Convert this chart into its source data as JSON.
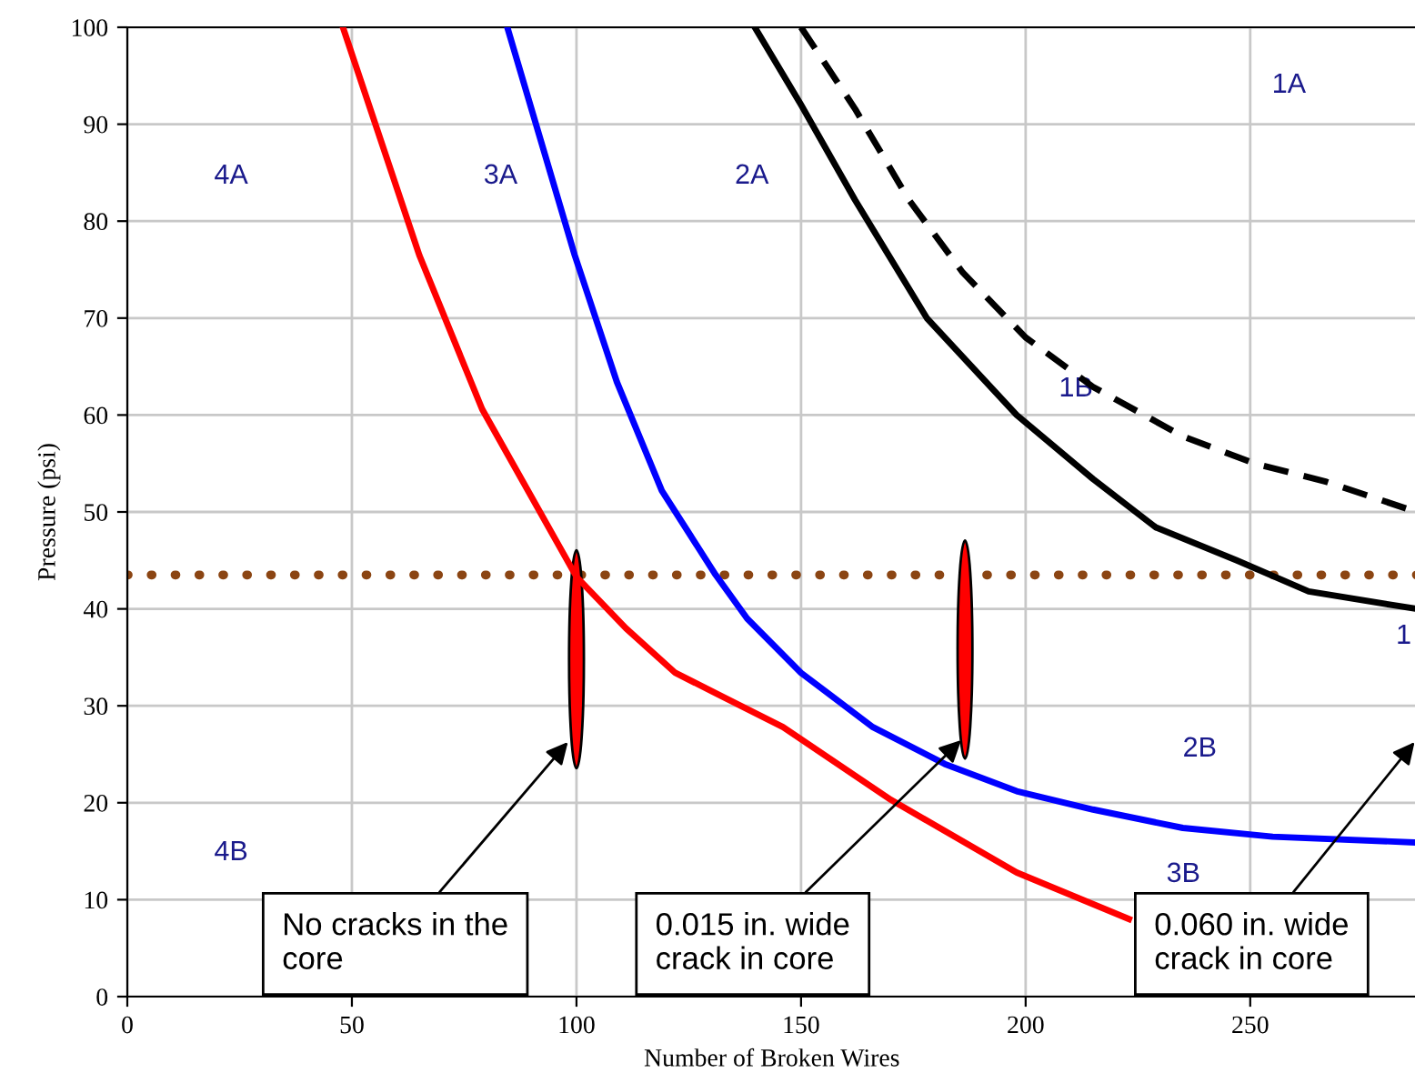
{
  "chart_data": {
    "type": "line",
    "xlabel": "Number of Broken Wires",
    "ylabel": "Pressure (psi)",
    "xlim": [
      0,
      287
    ],
    "ylim": [
      0,
      100
    ],
    "xticks": [
      0,
      50,
      100,
      150,
      200,
      250
    ],
    "yticks": [
      0,
      10,
      20,
      30,
      40,
      50,
      60,
      70,
      80,
      90,
      100
    ],
    "grid": true,
    "marker": "none",
    "series": [
      {
        "color": "#ff0000",
        "line_style": "solid",
        "x": [
          48,
          65,
          79,
          100,
          111,
          122,
          146,
          170,
          198,
          223
        ],
        "values": [
          100,
          76.5,
          60.6,
          43.3,
          38,
          33.4,
          27.8,
          20.3,
          12.8,
          8
        ]
      },
      {
        "color": "#0000ff",
        "line_style": "solid",
        "x": [
          84.6,
          99.6,
          109,
          119,
          131,
          138,
          150,
          166,
          182,
          198,
          215,
          235,
          255,
          287
        ],
        "values": [
          100,
          76.5,
          63.4,
          52.2,
          43.5,
          39,
          33.4,
          27.8,
          24,
          21.2,
          19.3,
          17.4,
          16.5,
          15.9
        ]
      },
      {
        "color": "#000000",
        "line_style": "solid",
        "x": [
          139.7,
          150,
          162,
          178,
          198,
          215,
          229,
          247,
          263,
          287
        ],
        "values": [
          100,
          92,
          82.2,
          70,
          60,
          53.4,
          48.4,
          45,
          41.8,
          40
        ]
      },
      {
        "color": "#000000",
        "line_style": "dashed",
        "x": [
          150,
          162,
          174,
          186,
          200,
          215,
          235,
          251,
          267,
          287
        ],
        "values": [
          100,
          91.6,
          82.2,
          74.7,
          68,
          62.9,
          57.8,
          55,
          53.1,
          50
        ]
      }
    ],
    "ref_lines": [
      {
        "axis": "y",
        "value": 43.5,
        "color": "#8b4513",
        "line_style": "dotted"
      }
    ],
    "annotations": [
      "4A",
      "3A",
      "2A",
      "1A",
      "1B",
      "2B",
      "3B",
      "4B",
      "1",
      "No cracks in the\ncore",
      "0.015 in. wide\ncrack in core",
      "0.060 in. wide\ncrack in core"
    ]
  }
}
